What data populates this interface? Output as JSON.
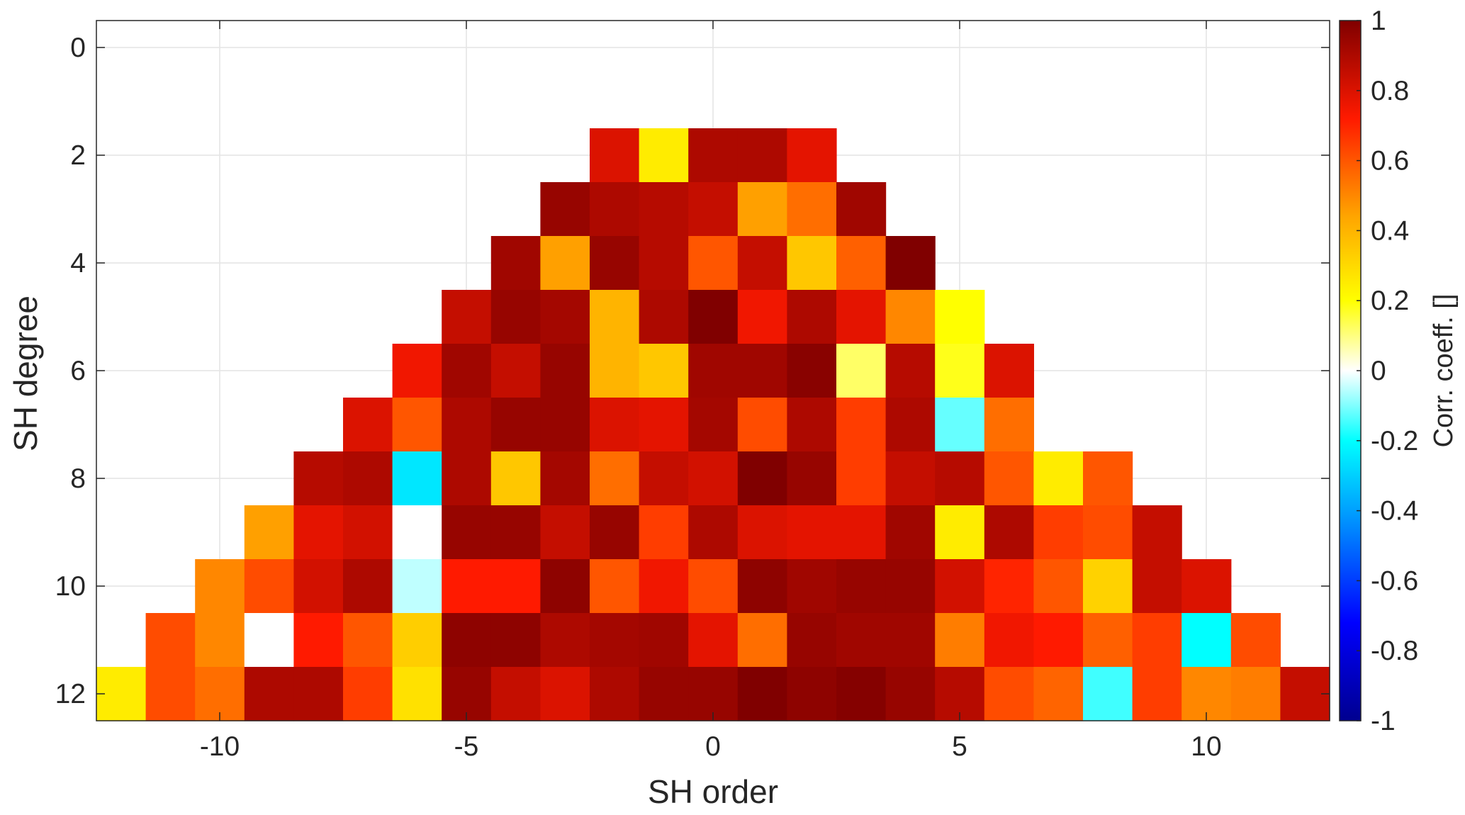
{
  "chart_data": {
    "type": "heatmap",
    "xlabel": "SH order",
    "ylabel": "SH degree",
    "colorbar_label": "Corr. coeff. []",
    "xlim": [
      -12.5,
      12.5
    ],
    "ylim": [
      -0.5,
      12.5
    ],
    "y_reversed": true,
    "grid": true,
    "x_ticks": [
      -10,
      -5,
      0,
      5,
      10
    ],
    "x_tick_labels": [
      "-10",
      "-5",
      "0",
      "5",
      "10"
    ],
    "y_ticks": [
      0,
      2,
      4,
      6,
      8,
      10,
      12
    ],
    "y_tick_labels": [
      "0",
      "2",
      "4",
      "6",
      "8",
      "10",
      "12"
    ],
    "clim": [
      -1,
      1
    ],
    "colorbar_ticks": [
      -1,
      -0.8,
      -0.6,
      -0.4,
      -0.2,
      0,
      0.2,
      0.4,
      0.6,
      0.8,
      1
    ],
    "colorbar_tick_labels": [
      "-1",
      "-0.8",
      "-0.6",
      "-0.4",
      "-0.2",
      "0",
      "0.2",
      "0.4",
      "0.6",
      "0.8",
      "1"
    ],
    "colormap": "jet-white-center",
    "rows": [
      {
        "degree": 2,
        "values": [
          0.8,
          0.25,
          0.9,
          0.9,
          0.78
        ]
      },
      {
        "degree": 3,
        "values": [
          0.95,
          0.9,
          0.88,
          0.85,
          0.45,
          0.55,
          0.93
        ]
      },
      {
        "degree": 4,
        "values": [
          0.93,
          0.45,
          0.95,
          0.88,
          0.6,
          0.85,
          0.35,
          0.58,
          1.0
        ]
      },
      {
        "degree": 5,
        "values": [
          0.85,
          0.95,
          0.92,
          0.4,
          0.9,
          1.0,
          0.75,
          0.9,
          0.78,
          0.5,
          0.2
        ]
      },
      {
        "degree": 6,
        "values": [
          0.75,
          0.93,
          0.85,
          0.95,
          0.4,
          0.35,
          0.93,
          0.93,
          0.98,
          0.12,
          0.88,
          0.18,
          0.8
        ]
      },
      {
        "degree": 7,
        "values": [
          0.8,
          0.6,
          0.9,
          0.95,
          0.95,
          0.8,
          0.78,
          0.92,
          0.62,
          0.9,
          0.65,
          0.9,
          -0.12,
          0.55
        ]
      },
      {
        "degree": 8,
        "values": [
          0.88,
          0.9,
          -0.25,
          0.9,
          0.35,
          0.92,
          0.55,
          0.85,
          0.82,
          1.0,
          0.95,
          0.65,
          0.85,
          0.88,
          0.6,
          0.25,
          0.6
        ]
      },
      {
        "degree": 9,
        "values": [
          0.45,
          0.78,
          0.82,
          0.0,
          0.95,
          0.95,
          0.85,
          0.95,
          0.65,
          0.9,
          0.8,
          0.78,
          0.78,
          0.93,
          0.25,
          0.9,
          0.65,
          0.62,
          0.85
        ]
      },
      {
        "degree": 10,
        "values": [
          0.5,
          0.62,
          0.82,
          0.9,
          -0.05,
          0.72,
          0.72,
          0.97,
          0.6,
          0.75,
          0.62,
          0.97,
          0.93,
          0.95,
          0.95,
          0.82,
          0.7,
          0.6,
          0.32,
          0.85,
          0.8
        ]
      },
      {
        "degree": 11,
        "values": [
          0.62,
          0.5,
          0.0,
          0.72,
          0.6,
          0.33,
          0.97,
          0.97,
          0.9,
          0.92,
          0.93,
          0.78,
          0.55,
          0.95,
          0.93,
          0.93,
          0.52,
          0.75,
          0.72,
          0.58,
          0.65,
          -0.2,
          0.62
        ]
      },
      {
        "degree": 12,
        "values": [
          0.25,
          0.62,
          0.55,
          0.9,
          0.9,
          0.65,
          0.28,
          0.95,
          0.85,
          0.8,
          0.9,
          0.95,
          0.95,
          1.0,
          0.97,
          0.99,
          0.95,
          0.88,
          0.62,
          0.57,
          -0.15,
          0.65,
          0.5,
          0.52,
          0.85
        ]
      }
    ]
  }
}
